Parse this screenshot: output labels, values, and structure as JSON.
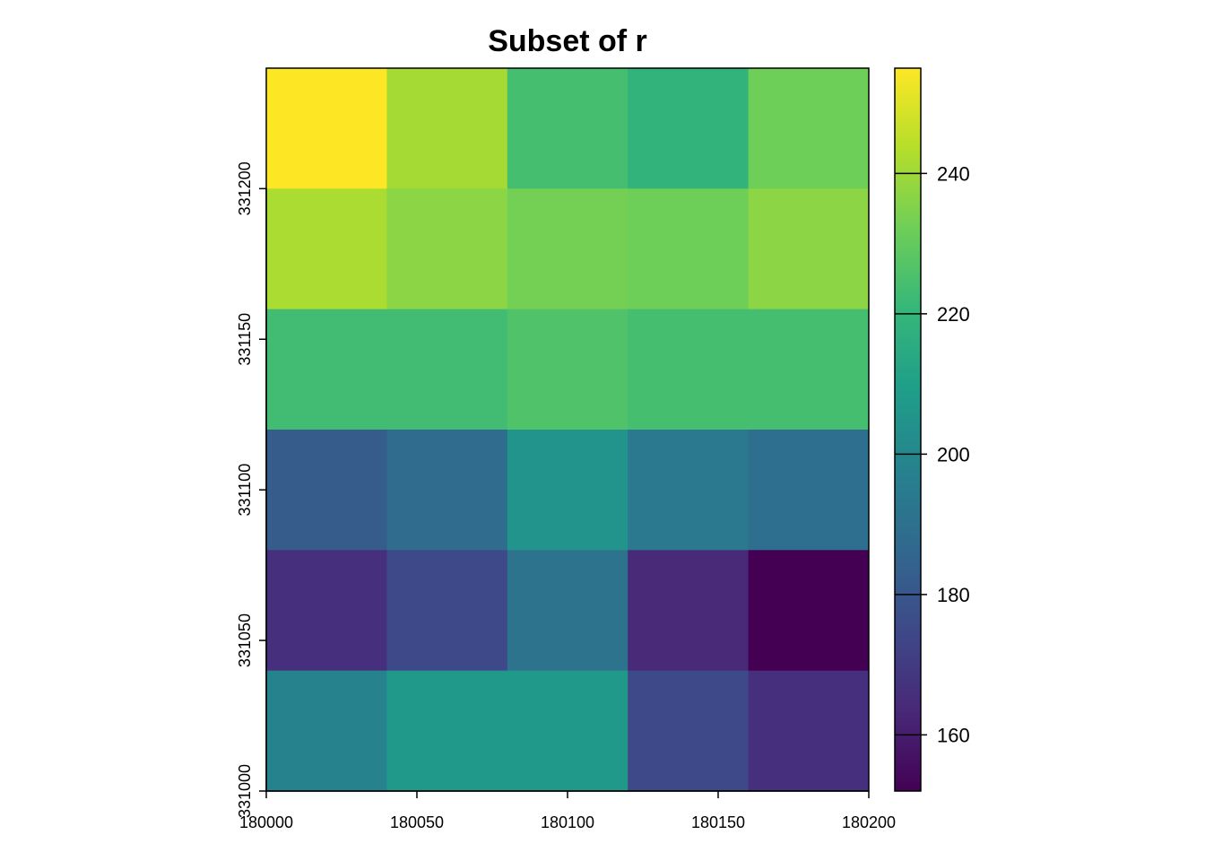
{
  "chart_data": {
    "type": "heatmap",
    "title": "Subset of r",
    "xlabel": "",
    "ylabel": "",
    "x_ticks": [
      180000,
      180050,
      180100,
      180150,
      180200
    ],
    "y_ticks": [
      331000,
      331050,
      331100,
      331150,
      331200
    ],
    "xlim": [
      180000,
      180200
    ],
    "ylim": [
      331000,
      331240
    ],
    "cell_width": 40,
    "cell_height": 40,
    "x_cells": [
      180020,
      180060,
      180100,
      180140,
      180180
    ],
    "y_cells": [
      331220,
      331180,
      331140,
      331100,
      331060,
      331020
    ],
    "values": [
      [
        255,
        241,
        224,
        219,
        232
      ],
      [
        242,
        237,
        233,
        232,
        237
      ],
      [
        223,
        223,
        226,
        224,
        224
      ],
      [
        182,
        188,
        205,
        194,
        189
      ],
      [
        166,
        175,
        191,
        164,
        152
      ],
      [
        198,
        207,
        207,
        175,
        166
      ]
    ],
    "colorbar": {
      "ticks": [
        160,
        180,
        200,
        220,
        240
      ],
      "range": [
        152,
        255
      ],
      "palette": "viridis",
      "colors": [
        "#440154",
        "#482878",
        "#3e4989",
        "#31688e",
        "#26828e",
        "#1f9e89",
        "#35b779",
        "#6ece58",
        "#b5de2b",
        "#fde725"
      ]
    },
    "grid": false,
    "legend": "right"
  }
}
